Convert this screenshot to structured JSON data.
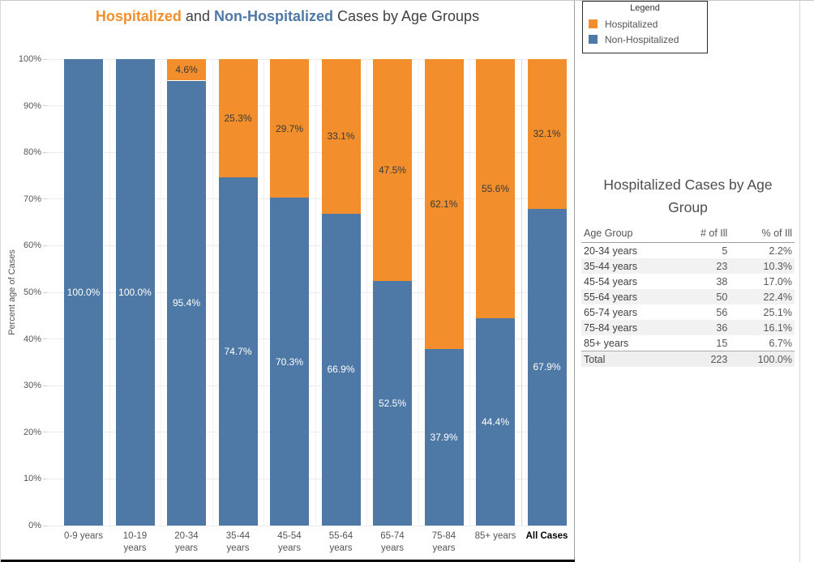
{
  "title_parts": [
    {
      "text": "Hospitalized",
      "color": "#F28E2B",
      "bold": true
    },
    {
      "text": " and ",
      "color": "#424242",
      "bold": false
    },
    {
      "text": "Non-Hospitalized",
      "color": "#4E79A7",
      "bold": true
    },
    {
      "text": " Cases by Age Groups",
      "color": "#424242",
      "bold": false
    }
  ],
  "legend": {
    "title": "Legend",
    "items": [
      {
        "label": "Hospitalized",
        "color": "#F28E2B"
      },
      {
        "label": "Non-Hospitalized",
        "color": "#4E79A7"
      }
    ]
  },
  "chart_data": {
    "type": "bar",
    "stacked": true,
    "title": "Hospitalized and Non-Hospitalized Cases by Age Groups",
    "xlabel": "",
    "ylabel": "Percent age of Cases",
    "ylim": [
      0,
      100
    ],
    "grid": true,
    "legend_position": "top-right",
    "y_ticks": [
      "0%",
      "10%",
      "20%",
      "30%",
      "40%",
      "50%",
      "60%",
      "70%",
      "80%",
      "90%",
      "100%"
    ],
    "categories": [
      "0-9 years",
      "10-19 years",
      "20-34 years",
      "35-44 years",
      "45-54 years",
      "55-64 years",
      "65-74 years",
      "75-84 years",
      "85+ years",
      "All Cases"
    ],
    "tick_lines": [
      [
        "0-9 years"
      ],
      [
        "10-19",
        "years"
      ],
      [
        "20-34",
        "years"
      ],
      [
        "35-44",
        "years"
      ],
      [
        "45-54",
        "years"
      ],
      [
        "55-64",
        "years"
      ],
      [
        "65-74",
        "years"
      ],
      [
        "75-84",
        "years"
      ],
      [
        "85+ years"
      ],
      [
        "All Cases"
      ]
    ],
    "series": [
      {
        "name": "Hospitalized",
        "color": "#F28E2B",
        "values": [
          0,
          0,
          4.6,
          25.3,
          29.7,
          33.1,
          47.5,
          62.1,
          55.6,
          32.1
        ]
      },
      {
        "name": "Non-Hospitalized",
        "color": "#4E79A7",
        "values": [
          100.0,
          100.0,
          95.4,
          74.7,
          70.3,
          66.9,
          52.5,
          37.9,
          44.4,
          67.9
        ]
      }
    ]
  },
  "side_table": {
    "title": "Hospitalized Cases by Age Group",
    "title_lines": [
      "Hospitalized Cases by Age",
      "Group"
    ],
    "headers": [
      "Age Group",
      "# of Ill",
      "% of Ill"
    ],
    "rows": [
      [
        "20-34 years",
        "5",
        "2.2%"
      ],
      [
        "35-44 years",
        "23",
        "10.3%"
      ],
      [
        "45-54 years",
        "38",
        "17.0%"
      ],
      [
        "55-64 years",
        "50",
        "22.4%"
      ],
      [
        "65-74 years",
        "56",
        "25.1%"
      ],
      [
        "75-84 years",
        "36",
        "16.1%"
      ],
      [
        "85+ years",
        "15",
        "6.7%"
      ]
    ],
    "total_row": [
      "Total",
      "223",
      "100.0%"
    ]
  },
  "colors": {
    "hospitalized": "#F28E2B",
    "non_hospitalized": "#4E79A7",
    "title_text": "#424242",
    "axis_text": "#555555",
    "grid": "#ECECEC"
  }
}
